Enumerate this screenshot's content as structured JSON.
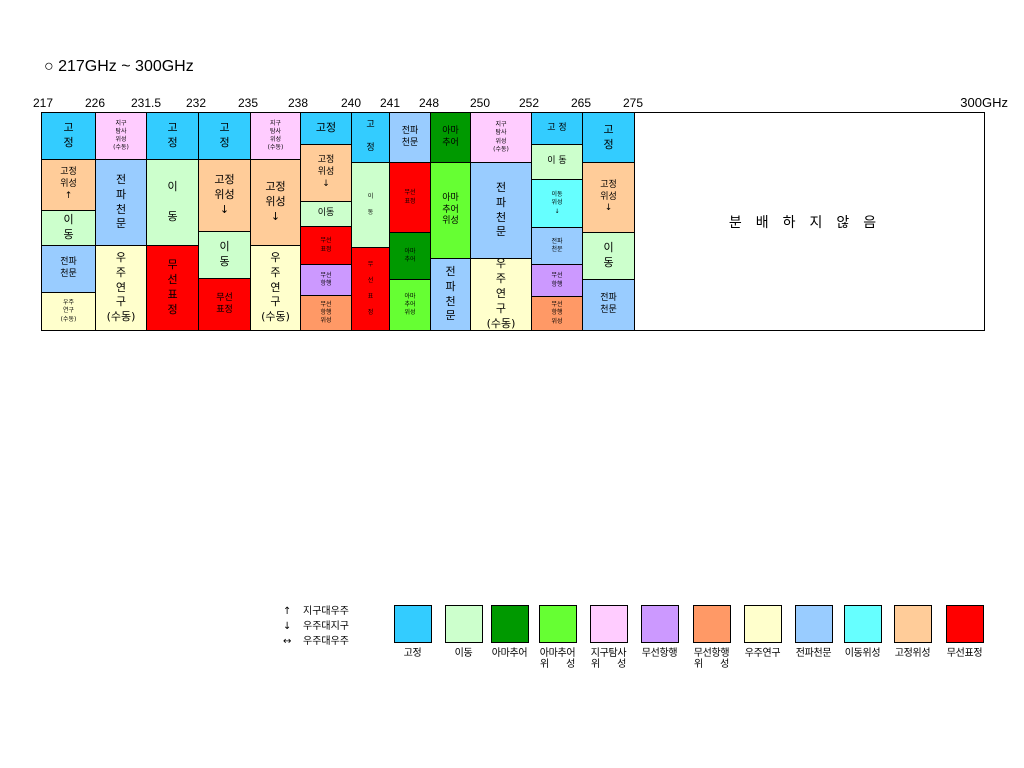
{
  "title": "○ 217GHz ~ 300GHz",
  "frequency_labels": [
    "217",
    "226",
    "231.5",
    "232",
    "235",
    "238",
    "240",
    "241",
    "248",
    "250",
    "252",
    "265",
    "275"
  ],
  "frequency_end_label": "300GHz",
  "colors": {
    "fixed": "#33ccff",
    "mobile": "#ccffcc",
    "amateur": "#009900",
    "amateur_sat": "#66ff33",
    "eess": "#ffccff",
    "radionav": "#cc99ff",
    "radionav_sat": "#ff9966",
    "space_research": "#ffffcc",
    "radio_astronomy": "#99ccff",
    "mobile_sat": "#66ffff",
    "fixed_sat": "#ffcc99",
    "radiolocation": "#ff0000",
    "unallocated": "#ffffff"
  },
  "columns": [
    {
      "id": "217-226",
      "cells": [
        {
          "text": "고\n정",
          "c": "fixed",
          "h": 47,
          "fs": "l"
        },
        {
          "text": "고정\n위성\n↑",
          "c": "fixed_sat",
          "h": 51,
          "fs": "m"
        },
        {
          "text": "이\n동",
          "c": "mobile",
          "h": 35,
          "fs": "l"
        },
        {
          "text": "전파\n천문",
          "c": "radio_astronomy",
          "h": 47,
          "fs": "m"
        },
        {
          "text": "우주\n연구\n(수동)",
          "c": "space_research",
          "h": 38,
          "fs": "s"
        }
      ]
    },
    {
      "id": "226-231.5",
      "cells": [
        {
          "text": "지구\n탐사\n위성\n(수동)",
          "c": "eess",
          "h": 47,
          "fs": "s"
        },
        {
          "text": "전\n파\n천\n문",
          "c": "radio_astronomy",
          "h": 86,
          "fs": "l"
        },
        {
          "text": "우\n주\n연\n구\n(수동)",
          "c": "space_research",
          "h": 85,
          "fs": "l"
        }
      ]
    },
    {
      "id": "231.5-232",
      "cells": [
        {
          "text": "고\n정",
          "c": "fixed",
          "h": 47,
          "fs": "l"
        },
        {
          "text": "이\n\n동",
          "c": "mobile",
          "h": 86,
          "fs": "l"
        },
        {
          "text": "무\n선\n표\n정",
          "c": "radiolocation",
          "h": 85,
          "fs": "l"
        }
      ]
    },
    {
      "id": "232-235",
      "cells": [
        {
          "text": "고\n정",
          "c": "fixed",
          "h": 47,
          "fs": "l"
        },
        {
          "text": "고정\n위성\n↓",
          "c": "fixed_sat",
          "h": 72,
          "fs": "l"
        },
        {
          "text": "이\n동",
          "c": "mobile",
          "h": 47,
          "fs": "l"
        },
        {
          "text": "무선\n표정",
          "c": "radiolocation",
          "h": 52,
          "fs": "m"
        }
      ]
    },
    {
      "id": "235-238",
      "cells": [
        {
          "text": "지구\n탐사\n위성\n(수동)",
          "c": "eess",
          "h": 47,
          "fs": "s"
        },
        {
          "text": "고정\n위성\n↓",
          "c": "fixed_sat",
          "h": 86,
          "fs": "l"
        },
        {
          "text": "우\n주\n연\n구\n(수동)",
          "c": "space_research",
          "h": 85,
          "fs": "l"
        }
      ]
    },
    {
      "id": "238-240",
      "cells": [
        {
          "text": "고정",
          "c": "fixed",
          "h": 32,
          "fs": "l"
        },
        {
          "text": "고정\n위성\n↓",
          "c": "fixed_sat",
          "h": 57,
          "fs": "m"
        },
        {
          "text": "이동",
          "c": "mobile",
          "h": 25,
          "fs": "m"
        },
        {
          "text": "무선\n표정",
          "c": "radiolocation",
          "h": 38,
          "fs": "s"
        },
        {
          "text": "무선\n항행",
          "c": "radionav",
          "h": 31,
          "fs": "s"
        },
        {
          "text": "무선\n항행\n위성",
          "c": "radionav_sat",
          "h": 35,
          "fs": "s"
        }
      ]
    },
    {
      "id": "240-241",
      "cells": [
        {
          "text": "고\n\n정",
          "c": "fixed",
          "h": 50,
          "fs": "m"
        },
        {
          "text": "이\n\n동",
          "c": "mobile",
          "h": 85,
          "fs": "s"
        },
        {
          "text": "무\n\n선\n\n표\n\n정",
          "c": "radiolocation",
          "h": 83,
          "fs": "s"
        }
      ]
    },
    {
      "id": "241-248",
      "cells": [
        {
          "text": "전파\n천문",
          "c": "radio_astronomy",
          "h": 50,
          "fs": "m"
        },
        {
          "text": "무선\n표정",
          "c": "radiolocation",
          "h": 70,
          "fs": "s"
        },
        {
          "text": "아마\n추어",
          "c": "amateur",
          "h": 47,
          "fs": "s"
        },
        {
          "text": "아마\n추어\n위성",
          "c": "amateur_sat",
          "h": 51,
          "fs": "s"
        }
      ]
    },
    {
      "id": "248-250",
      "cells": [
        {
          "text": "아마\n추어",
          "c": "amateur",
          "h": 50,
          "fs": "m"
        },
        {
          "text": "아마\n추어\n위성",
          "c": "amateur_sat",
          "h": 96,
          "fs": "m"
        },
        {
          "text": "전\n파\n천\n문",
          "c": "radio_astronomy",
          "h": 72,
          "fs": "l"
        }
      ]
    },
    {
      "id": "250-252",
      "cells": [
        {
          "text": "지구\n탐사\n위성\n(수동)",
          "c": "eess",
          "h": 50,
          "fs": "s"
        },
        {
          "text": "전\n파\n천\n문",
          "c": "radio_astronomy",
          "h": 96,
          "fs": "l"
        },
        {
          "text": "우\n주\n연\n구\n(수동)",
          "c": "space_research",
          "h": 72,
          "fs": "l"
        }
      ]
    },
    {
      "id": "252-265",
      "cells": [
        {
          "text": "고 정",
          "c": "fixed",
          "h": 32,
          "fs": "m"
        },
        {
          "text": "이 동",
          "c": "mobile",
          "h": 35,
          "fs": "m"
        },
        {
          "text": "이동\n위성\n↓",
          "c": "mobile_sat",
          "h": 48,
          "fs": "s"
        },
        {
          "text": "전파\n천문",
          "c": "radio_astronomy",
          "h": 37,
          "fs": "s"
        },
        {
          "text": "무선\n항행",
          "c": "radionav",
          "h": 32,
          "fs": "s"
        },
        {
          "text": "무선\n항행\n위성",
          "c": "radionav_sat",
          "h": 34,
          "fs": "s"
        }
      ]
    },
    {
      "id": "265-275",
      "cells": [
        {
          "text": "고\n정",
          "c": "fixed",
          "h": 50,
          "fs": "l"
        },
        {
          "text": "고정\n위성\n↓",
          "c": "fixed_sat",
          "h": 70,
          "fs": "m"
        },
        {
          "text": "이\n동",
          "c": "mobile",
          "h": 47,
          "fs": "l"
        },
        {
          "text": "전파\n천문",
          "c": "radio_astronomy",
          "h": 51,
          "fs": "m"
        }
      ]
    },
    {
      "id": "275-300",
      "cells": [
        {
          "text": "분배하지않음",
          "c": "unallocated",
          "h": 218,
          "fs": "xl"
        }
      ]
    }
  ],
  "arrow_legend": [
    {
      "symbol": "↑",
      "label": "지구대우주"
    },
    {
      "symbol": "↓",
      "label": "우주대지구"
    },
    {
      "symbol": "↔",
      "label": "우주대우주"
    }
  ],
  "legend": [
    {
      "label": "고정",
      "c": "fixed"
    },
    {
      "label": "이동",
      "c": "mobile"
    },
    {
      "label": "아마추어",
      "c": "amateur"
    },
    {
      "label": "아마추어\n위      성",
      "c": "amateur_sat"
    },
    {
      "label": "지구탐사\n위      성",
      "c": "eess"
    },
    {
      "label": "무선항행",
      "c": "radionav"
    },
    {
      "label": "무선항행\n위      성",
      "c": "radionav_sat"
    },
    {
      "label": "우주연구",
      "c": "space_research"
    },
    {
      "label": "전파천문",
      "c": "radio_astronomy"
    },
    {
      "label": "이동위성",
      "c": "mobile_sat"
    },
    {
      "label": "고정위성",
      "c": "fixed_sat"
    },
    {
      "label": "무선표정",
      "c": "radiolocation"
    }
  ]
}
